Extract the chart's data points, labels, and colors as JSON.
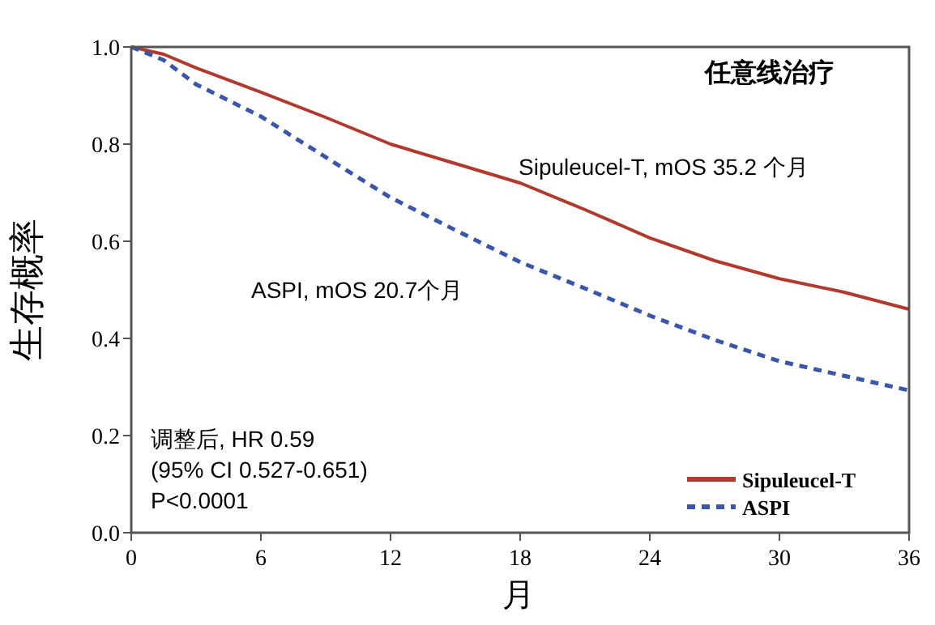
{
  "chart_data": {
    "type": "line",
    "title": "任意线治疗",
    "xlabel": "月",
    "ylabel": "生存概率",
    "annotations": [
      "Sipuleucel-T, mOS 35.2 个月",
      "ASPI, mOS 20.7个月",
      "调整后, HR 0.59\n (95% CI 0.527-0.651)\nP<0.0001"
    ],
    "x": [
      0,
      1.5,
      3,
      6,
      9,
      12,
      15,
      18,
      21,
      24,
      27,
      30,
      33,
      36
    ],
    "series": [
      {
        "name": "Sipuleucel-T",
        "color": "#b03a2e",
        "line_style": "solid",
        "values": [
          1,
          0.985,
          0.957,
          0.907,
          0.855,
          0.8,
          0.76,
          0.72,
          0.665,
          0.607,
          0.56,
          0.523,
          0.495,
          0.46
        ]
      },
      {
        "name": "ASPI",
        "color": "#3b55a8",
        "line_style": "dashed",
        "values": [
          1,
          0.973,
          0.923,
          0.857,
          0.773,
          0.69,
          0.623,
          0.557,
          0.503,
          0.447,
          0.397,
          0.353,
          0.323,
          0.293
        ]
      }
    ],
    "xlim": [
      0,
      36
    ],
    "ylim": [
      0,
      1
    ],
    "xticks": [
      0,
      6,
      12,
      18,
      24,
      30,
      36
    ],
    "yticks": [
      {
        "value": 0,
        "label": "0.0"
      },
      {
        "value": 0.2,
        "label": "0.2"
      },
      {
        "value": 0.4,
        "label": "0.4"
      },
      {
        "value": 0.6,
        "label": "0.6"
      },
      {
        "value": 0.8,
        "label": "0.8"
      },
      {
        "value": 1,
        "label": "1.0"
      }
    ],
    "legend": "bottom right",
    "grid": false
  }
}
